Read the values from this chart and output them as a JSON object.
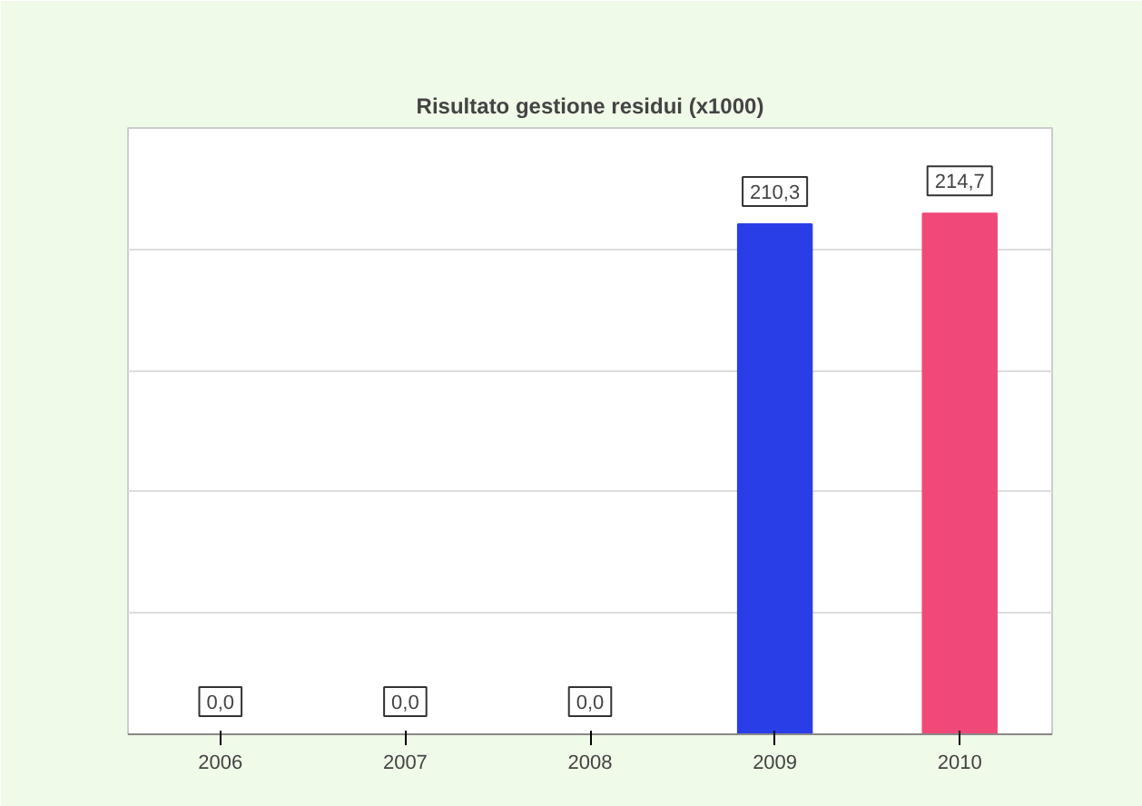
{
  "chart_data": {
    "type": "bar",
    "title": "Risultato gestione residui (x1000)",
    "categories": [
      "2006",
      "2007",
      "2008",
      "2009",
      "2010"
    ],
    "values": [
      0,
      0,
      0,
      210.3,
      214.7
    ],
    "value_labels": [
      "0,0",
      "0,0",
      "0,0",
      "210,3",
      "214,7"
    ],
    "colors": [
      "#c8e8e8",
      "#4a90d8",
      "#30c0c8",
      "#2a3ee8",
      "#f04878"
    ],
    "ylim": [
      0,
      250
    ],
    "yticks": [
      {
        "value": 0,
        "label": null
      },
      {
        "value": 50,
        "label": null
      },
      {
        "value": 100,
        "label": null
      },
      {
        "value": 150,
        "label": null
      },
      {
        "value": 200,
        "label": null
      },
      {
        "value": 250,
        "label": null
      }
    ],
    "grid": "y",
    "tick_labels": "x"
  }
}
